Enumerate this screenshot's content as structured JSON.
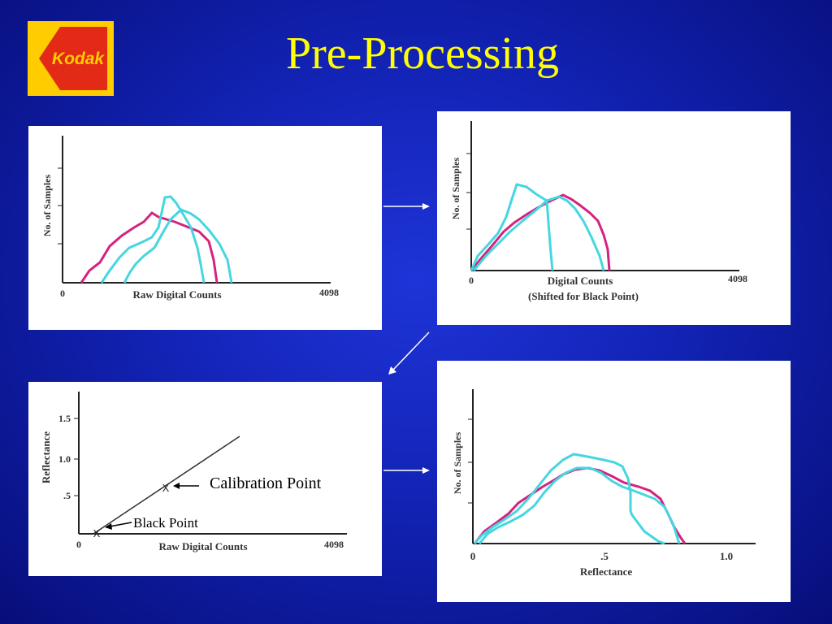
{
  "title": "Pre-Processing",
  "logo": {
    "brand": "Kodak",
    "colors": {
      "yellow": "#ffcc00",
      "red": "#e22a17"
    }
  },
  "colors": {
    "background": "#1223b5",
    "title": "#ffff00",
    "magenta_curve": "#d4237f",
    "cyan_curve": "#46d6e0",
    "arrow": "#ffffff"
  },
  "panels": {
    "raw": {
      "ylabel": "No. of Samples",
      "xlabel": "Raw Digital Counts",
      "x_min_label": "0",
      "x_max_label": "4098"
    },
    "shifted": {
      "ylabel": "No. of Samples",
      "xlabel": "Digital Counts",
      "xlabel2": "(Shifted for Black Point)",
      "x_min_label": "0",
      "x_max_label": "4098"
    },
    "calibration": {
      "ylabel": "Reflectance",
      "xlabel": "Raw Digital Counts",
      "x_min_label": "0",
      "x_max_label": "4098",
      "y_ticks": [
        "1.5",
        "1.0",
        ".5"
      ],
      "calibration_label": "Calibration Point",
      "black_label": "Black Point",
      "marker": "X"
    },
    "reflectance": {
      "ylabel": "No. of Samples",
      "xlabel": "Reflectance",
      "x_ticks": [
        "0",
        ".5",
        "1.0"
      ]
    }
  }
}
